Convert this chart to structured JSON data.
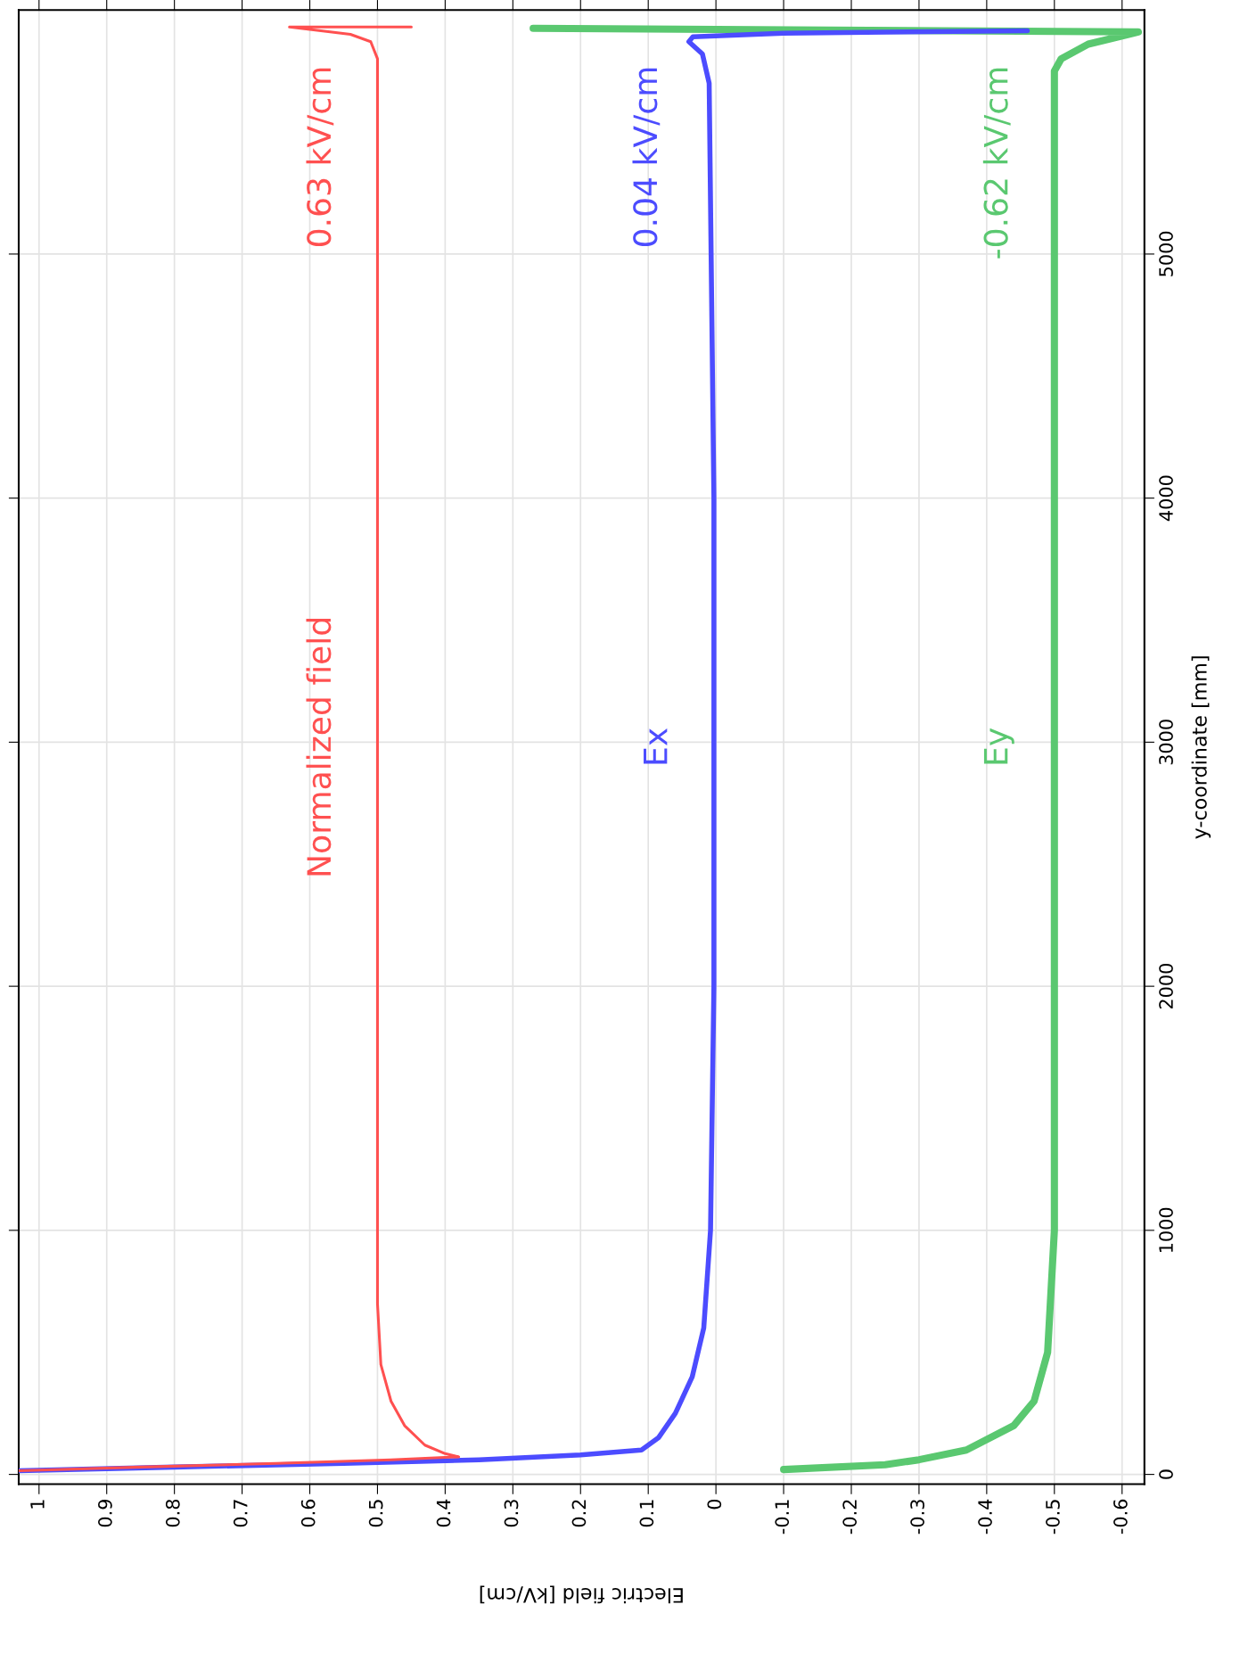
{
  "chart_data": {
    "type": "line",
    "orientation": "horizontal",
    "xlabel": "Electric field [kV/cm]",
    "ylabel": "y-coordinate [mm]",
    "xlim": [
      1.03,
      -0.633
    ],
    "xticks": [
      1,
      0.9,
      0.8,
      0.7,
      0.6,
      0.5,
      0.4,
      0.3,
      0.2,
      0.1,
      0,
      -0.1,
      -0.2,
      -0.3,
      -0.4,
      -0.5,
      -0.6
    ],
    "ylim": [
      -40,
      6000
    ],
    "yticks": [
      0,
      1000,
      2000,
      3000,
      4000,
      5000
    ],
    "grid": true,
    "legend": false,
    "marker": "none",
    "line_style": "solid",
    "series": [
      {
        "name": "Normalized field",
        "color": "#ff5050",
        "x": [
          15,
          30,
          45,
          60,
          72,
          85,
          120,
          200,
          300,
          450,
          700,
          1500,
          3000,
          4500,
          5600,
          5800,
          5870,
          5900,
          5920,
          5930,
          5930
        ],
        "values": [
          1.03,
          0.85,
          0.65,
          0.48,
          0.38,
          0.4,
          0.43,
          0.46,
          0.48,
          0.495,
          0.5,
          0.5,
          0.5,
          0.5,
          0.5,
          0.5,
          0.51,
          0.54,
          0.6,
          0.63,
          0.45
        ]
      },
      {
        "name": "Ex",
        "color": "#4c4cff",
        "x": [
          15,
          30,
          45,
          60,
          80,
          100,
          150,
          250,
          400,
          600,
          1000,
          2000,
          4000,
          5700,
          5820,
          5870,
          5890,
          5905,
          5915
        ],
        "values": [
          1.03,
          0.8,
          0.55,
          0.35,
          0.2,
          0.11,
          0.085,
          0.06,
          0.035,
          0.018,
          0.008,
          0.003,
          0.003,
          0.01,
          0.02,
          0.04,
          0.034,
          -0.1,
          -0.46
        ]
      },
      {
        "name": "Ey",
        "color": "#5ac870",
        "x": [
          20,
          40,
          60,
          100,
          200,
          300,
          500,
          1000,
          3000,
          5750,
          5800,
          5860,
          5910,
          5925
        ],
        "values": [
          -0.1,
          -0.25,
          -0.3,
          -0.37,
          -0.44,
          -0.47,
          -0.49,
          -0.5,
          -0.5,
          -0.5,
          -0.51,
          -0.55,
          -0.624,
          0.27
        ]
      }
    ],
    "annotations": [
      "0.63 kV/cm",
      "0.04 kV/cm",
      "-0.62 kV/cm"
    ]
  }
}
